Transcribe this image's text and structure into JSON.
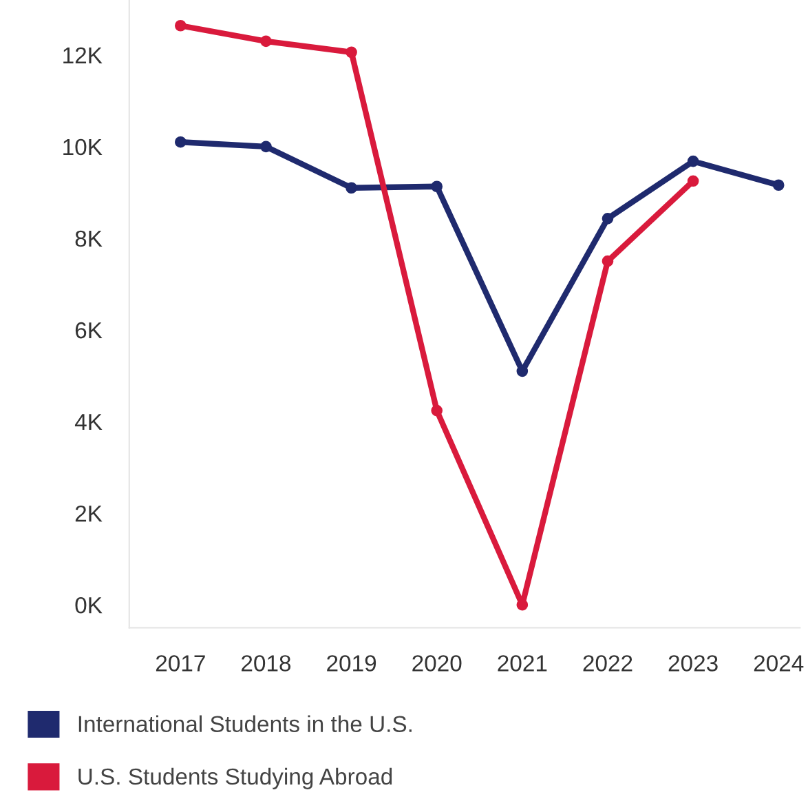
{
  "chart_data": {
    "type": "line",
    "categories": [
      "2017",
      "2018",
      "2019",
      "2020",
      "2021",
      "2022",
      "2023",
      "2024"
    ],
    "series": [
      {
        "name": "International Students in the U.S.",
        "color": "#1f2a6e",
        "values": [
          10100,
          10000,
          9100,
          9130,
          5100,
          8430,
          9680,
          9160
        ]
      },
      {
        "name": "U.S. Students Studying Abroad",
        "color": "#d91a3c",
        "values": [
          12640,
          12300,
          12060,
          4240,
          0,
          7500,
          9250,
          null
        ]
      }
    ],
    "ylim": [
      -500,
      13200
    ],
    "yticks": [
      {
        "value": 0,
        "label": "0K"
      },
      {
        "value": 2000,
        "label": "2K"
      },
      {
        "value": 4000,
        "label": "4K"
      },
      {
        "value": 6000,
        "label": "6K"
      },
      {
        "value": 8000,
        "label": "8K"
      },
      {
        "value": 10000,
        "label": "10K"
      },
      {
        "value": 12000,
        "label": "12K"
      }
    ],
    "grid": false,
    "legend": "bottom",
    "marker": "circle",
    "line_style": "solid"
  }
}
